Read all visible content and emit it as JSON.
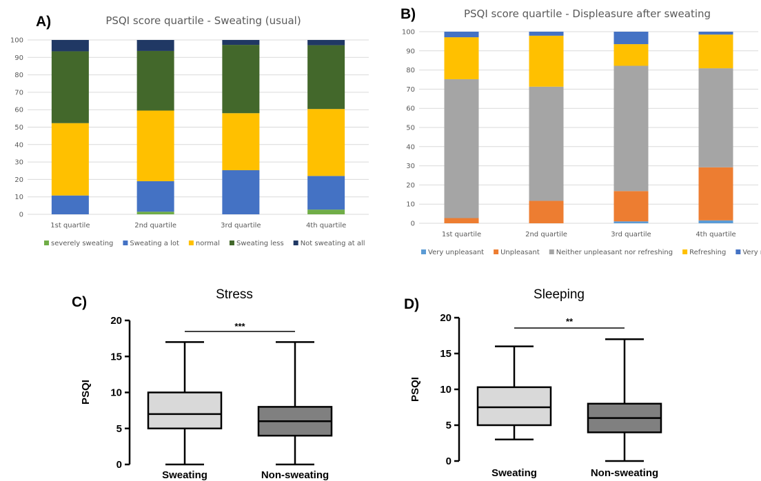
{
  "panels": {
    "A": {
      "letter": "A)"
    },
    "B": {
      "letter": "B)"
    },
    "C": {
      "letter": "C)",
      "significance": "***"
    },
    "D": {
      "letter": "D)",
      "significance": "**"
    }
  },
  "chart_data": [
    {
      "id": "A",
      "type": "bar",
      "stacked": true,
      "title": "PSQI score quartile - Sweating (usual)",
      "xlabel": "",
      "ylabel": "",
      "categories": [
        "1st quartile",
        "2nd quartile",
        "3rd quartile",
        "4th quartile"
      ],
      "ylim": [
        0,
        100
      ],
      "yticks": [
        0,
        10,
        20,
        30,
        40,
        50,
        60,
        70,
        80,
        90,
        100
      ],
      "grid": true,
      "legend_position": "bottom",
      "series": [
        {
          "name": "severely sweating",
          "color": "#70ad47",
          "values": [
            0,
            1.5,
            0,
            2.7
          ]
        },
        {
          "name": "Sweating a lot",
          "color": "#4472c4",
          "values": [
            10.8,
            17.5,
            25.3,
            19.3
          ]
        },
        {
          "name": "normal",
          "color": "#ffc000",
          "values": [
            41.5,
            40.5,
            32.7,
            38.4
          ]
        },
        {
          "name": "Sweating less",
          "color": "#43682b",
          "values": [
            41.2,
            34.2,
            39.2,
            36.6
          ]
        },
        {
          "name": "Not sweating at all",
          "color": "#203864",
          "values": [
            6.5,
            6.3,
            2.8,
            3.0
          ]
        }
      ]
    },
    {
      "id": "B",
      "type": "bar",
      "stacked": true,
      "title": "PSQI score quartile - Displeasure after sweating",
      "xlabel": "",
      "ylabel": "",
      "categories": [
        "1st quartile",
        "2nd quartile",
        "3rd quartile",
        "4th quartile"
      ],
      "ylim": [
        0,
        100
      ],
      "yticks": [
        0,
        10,
        20,
        30,
        40,
        50,
        60,
        70,
        80,
        90,
        100
      ],
      "grid": true,
      "legend_position": "bottom",
      "series": [
        {
          "name": "Very unpleasant",
          "color": "#5b9bd5",
          "values": [
            0,
            0,
            1,
            1.5
          ]
        },
        {
          "name": "Unpleasant",
          "color": "#ed7d31",
          "values": [
            2.7,
            11.7,
            15.8,
            27.7
          ]
        },
        {
          "name": "Neither unpleasant nor refreshing",
          "color": "#a5a5a5",
          "values": [
            72.5,
            59.6,
            65.4,
            51.7
          ]
        },
        {
          "name": "Refreshing",
          "color": "#ffc000",
          "values": [
            21.9,
            26.6,
            11.3,
            17.6
          ]
        },
        {
          "name": "Very refreshing",
          "color": "#4472c4",
          "values": [
            2.9,
            2.1,
            6.5,
            1.5
          ]
        }
      ]
    },
    {
      "id": "C",
      "type": "box",
      "title": "Stress",
      "ylabel": "PSQI",
      "categories": [
        "Sweating",
        "Non-sweating"
      ],
      "ylim": [
        0,
        20
      ],
      "yticks": [
        0,
        5,
        10,
        15,
        20
      ],
      "boxes": [
        {
          "name": "Sweating",
          "min": 0,
          "q1": 5,
          "median": 7,
          "q3": 10,
          "max": 17,
          "color": "#d9d9d9"
        },
        {
          "name": "Non-sweating",
          "min": 0,
          "q1": 4,
          "median": 6,
          "q3": 8,
          "max": 17,
          "color": "#808080"
        }
      ]
    },
    {
      "id": "D",
      "type": "box",
      "title": "Sleeping",
      "ylabel": "PSQI",
      "categories": [
        "Sweating",
        "Non-sweating"
      ],
      "ylim": [
        0,
        20
      ],
      "yticks": [
        0,
        5,
        10,
        15,
        20
      ],
      "boxes": [
        {
          "name": "Sweating",
          "min": 3,
          "q1": 5,
          "median": 7.5,
          "q3": 10.3,
          "max": 16,
          "color": "#d9d9d9"
        },
        {
          "name": "Non-sweating",
          "min": 0,
          "q1": 4,
          "median": 6,
          "q3": 8,
          "max": 17,
          "color": "#808080"
        }
      ]
    }
  ]
}
